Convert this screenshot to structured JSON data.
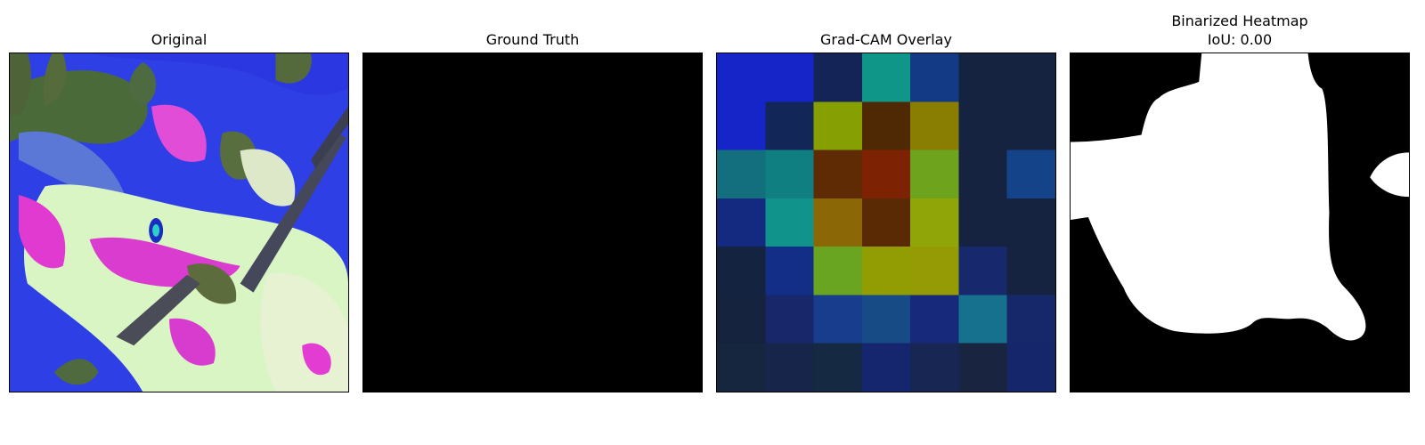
{
  "panels": [
    {
      "title": "Original"
    },
    {
      "title": "Ground Truth"
    },
    {
      "title": "Grad-CAM Overlay"
    },
    {
      "title": "Binarized Heatmap",
      "subtitle": "IoU: 0.00"
    }
  ],
  "gradcam_grid": [
    [
      "#1525c8",
      "#1525c8",
      "#152457",
      "#0f9688",
      "#133a84",
      "#152340",
      "#152340"
    ],
    [
      "#1525c8",
      "#132658",
      "#86a004",
      "#4f2904",
      "#8a7e02",
      "#152340",
      "#152340"
    ],
    [
      "#136e7e",
      "#107f82",
      "#5e2b05",
      "#7d2303",
      "#6ea41d",
      "#152340",
      "#15438a"
    ],
    [
      "#132a80",
      "#10938a",
      "#8b6705",
      "#5a2a05",
      "#90a507",
      "#152340",
      "#152340"
    ],
    [
      "#142340",
      "#132e86",
      "#6aa522",
      "#929d04",
      "#959b05",
      "#17286c",
      "#152340"
    ],
    [
      "#15233f",
      "#17276a",
      "#173d8c",
      "#174b86",
      "#16297a",
      "#16718e",
      "#16286a"
    ],
    [
      "#15263e",
      "#17254b",
      "#162942",
      "#16266e",
      "#182654",
      "#182440",
      "#16266a"
    ]
  ]
}
